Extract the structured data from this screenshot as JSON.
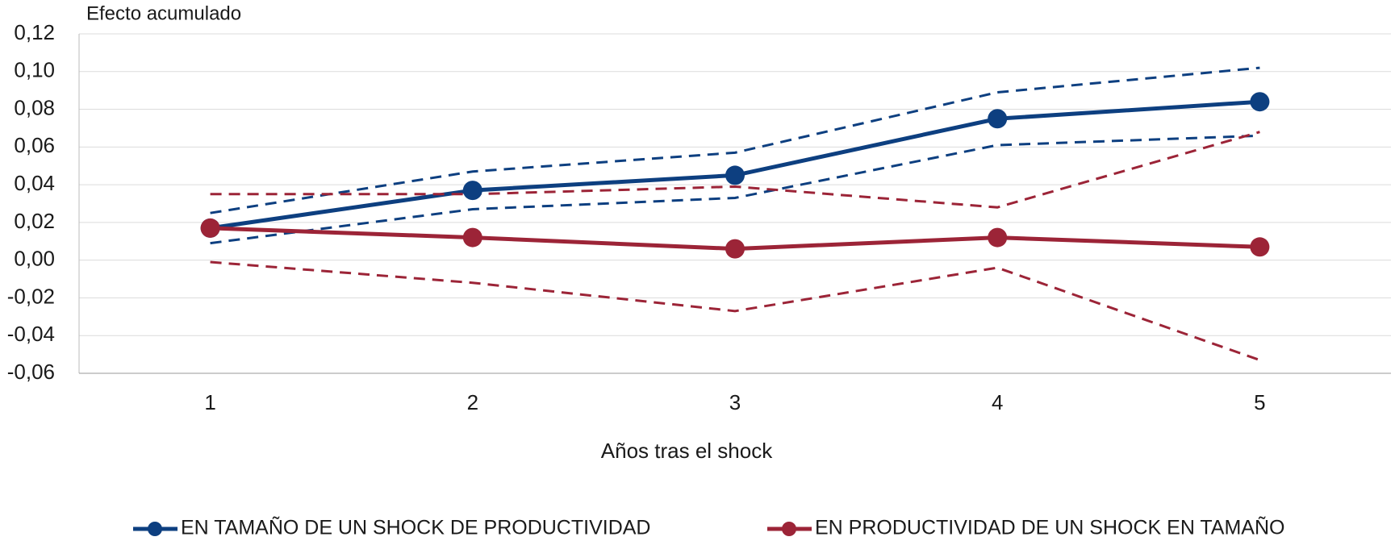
{
  "chart_data": {
    "type": "line",
    "y_axis_label": "Efecto acumulado",
    "x_axis_label": "Años tras el shock",
    "categories": [
      "1",
      "2",
      "3",
      "4",
      "5"
    ],
    "series": [
      {
        "name": "EN TAMAÑO DE UN SHOCK DE PRODUCTIVIDAD",
        "color": "#0d3f80",
        "style": "solid",
        "values": [
          0.017,
          0.037,
          0.045,
          0.075,
          0.084
        ]
      },
      {
        "color": "#0d3f80",
        "style": "dashed",
        "values": [
          0.025,
          0.047,
          0.057,
          0.089,
          0.102
        ]
      },
      {
        "color": "#0d3f80",
        "style": "dashed",
        "values": [
          0.009,
          0.027,
          0.033,
          0.061,
          0.066
        ]
      },
      {
        "name": "EN PRODUCTIVIDAD DE UN SHOCK EN TAMAÑO",
        "color": "#9c2437",
        "style": "solid",
        "values": [
          0.017,
          0.012,
          0.006,
          0.012,
          0.007
        ]
      },
      {
        "color": "#9c2437",
        "style": "dashed",
        "values": [
          0.035,
          0.035,
          0.039,
          0.028,
          0.068
        ]
      },
      {
        "color": "#9c2437",
        "style": "dashed",
        "values": [
          -0.001,
          -0.012,
          -0.027,
          -0.004,
          -0.053
        ]
      }
    ],
    "ylim": [
      -0.06,
      0.12
    ],
    "yticks": [
      {
        "value": -0.06,
        "label": "-0,06"
      },
      {
        "value": -0.04,
        "label": "-0,04"
      },
      {
        "value": -0.02,
        "label": "-0,02"
      },
      {
        "value": 0,
        "label": "0,00"
      },
      {
        "value": 0.02,
        "label": "0,02"
      },
      {
        "value": 0.04,
        "label": "0,04"
      },
      {
        "value": 0.06,
        "label": "0,06"
      },
      {
        "value": 0.08,
        "label": "0,08"
      },
      {
        "value": 0.1,
        "label": "0,10"
      },
      {
        "value": 0.12,
        "label": "0,12"
      }
    ],
    "grid": true,
    "legend": "bottom"
  }
}
